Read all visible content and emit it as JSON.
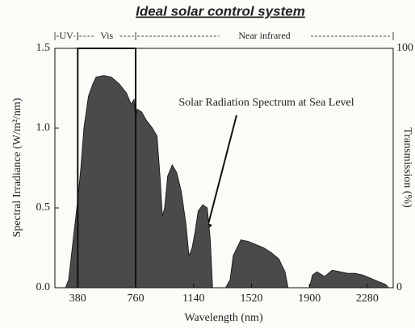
{
  "chart_data": {
    "type": "area",
    "title": "Ideal solar control system",
    "xlabel": "Wavelength (nm)",
    "ylabel": "Spectral Irradiance (W/m²/nm)",
    "y2label": "Transmission (%)",
    "annotation": "Solar Radiation Spectrum at Sea Level",
    "regions": [
      {
        "label": "UV",
        "start": 230,
        "end": 380
      },
      {
        "label": "Vis",
        "start": 380,
        "end": 760
      },
      {
        "label": "Near infrared",
        "start": 760,
        "end": 2450
      }
    ],
    "xlim": [
      230,
      2450
    ],
    "xticks": [
      380,
      760,
      1140,
      1520,
      1900,
      2280
    ],
    "ylim": [
      0,
      1.5
    ],
    "yticks": [
      {
        "value": 0,
        "label": "0.0"
      },
      {
        "value": 0.5,
        "label": "0.5"
      },
      {
        "value": 1,
        "label": "1.0"
      },
      {
        "value": 1.5,
        "label": "1.5"
      }
    ],
    "y2lim": [
      0,
      100
    ],
    "y2ticks": [
      0,
      100
    ],
    "series": [
      {
        "color": "#4a4a4a",
        "x": [
          300,
          320,
          350,
          380,
          400,
          420,
          450,
          480,
          500,
          550,
          600,
          650,
          700,
          730,
          750,
          760,
          770,
          800,
          830,
          870,
          900,
          920,
          935,
          950,
          970,
          1000,
          1030,
          1060,
          1090,
          1110,
          1130,
          1150,
          1170,
          1200,
          1230,
          1250,
          1265,
          1350,
          1380,
          1400,
          1450,
          1500,
          1550,
          1600,
          1650,
          1700,
          1740,
          1760,
          1900,
          1920,
          1950,
          2000,
          2050,
          2100,
          2150,
          2200,
          2250,
          2300,
          2350,
          2400,
          2420
        ],
        "values": [
          0,
          0.05,
          0.3,
          0.55,
          0.75,
          1.0,
          1.2,
          1.28,
          1.32,
          1.33,
          1.32,
          1.28,
          1.22,
          1.15,
          1.18,
          1.05,
          1.12,
          1.1,
          1.05,
          1.0,
          0.95,
          0.7,
          0.45,
          0.5,
          0.7,
          0.77,
          0.72,
          0.6,
          0.4,
          0.2,
          0.25,
          0.35,
          0.48,
          0.52,
          0.5,
          0.3,
          0,
          0,
          0.05,
          0.2,
          0.3,
          0.29,
          0.27,
          0.25,
          0.22,
          0.18,
          0.1,
          0,
          0,
          0.08,
          0.1,
          0.07,
          0.11,
          0.1,
          0.09,
          0.09,
          0.08,
          0.06,
          0.04,
          0.02,
          0
        ]
      },
      {
        "color": "#111111",
        "axis": "y2",
        "x": [
          380,
          380,
          760,
          760
        ],
        "values": [
          0,
          100,
          100,
          0
        ]
      }
    ]
  }
}
